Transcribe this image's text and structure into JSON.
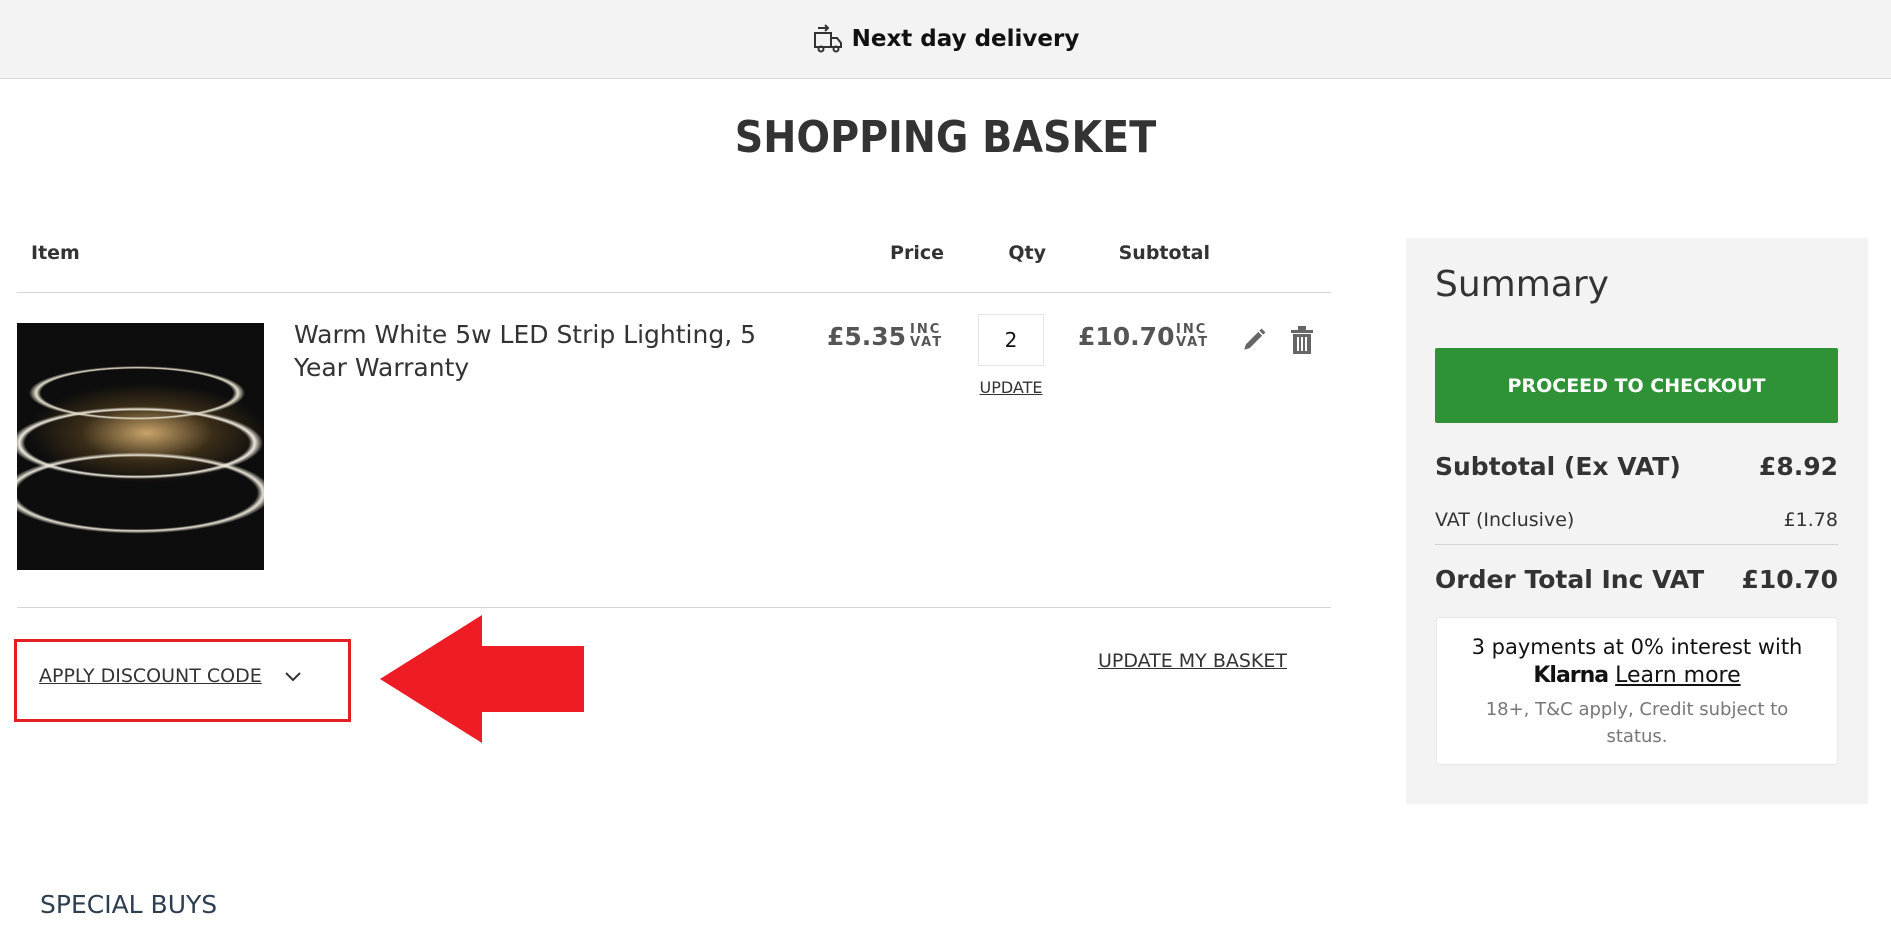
{
  "topbar": {
    "delivery_label": "Next day delivery",
    "icon": "truck-icon"
  },
  "page_title": "SHOPPING BASKET",
  "table": {
    "headers": {
      "item": "Item",
      "price": "Price",
      "qty": "Qty",
      "subtotal": "Subtotal"
    },
    "rows": [
      {
        "name": "Warm White 5w LED Strip Lighting, 5 Year Warranty",
        "price": "£5.35",
        "price_tax": [
          "INC",
          "VAT"
        ],
        "qty": "2",
        "update_label": "UPDATE",
        "subtotal": "£10.70",
        "subtotal_tax": [
          "INC",
          "VAT"
        ]
      }
    ]
  },
  "discount": {
    "label": "APPLY DISCOUNT CODE"
  },
  "update_basket_label": "UPDATE MY BASKET",
  "summary": {
    "title": "Summary",
    "checkout_label": "PROCEED TO CHECKOUT",
    "subtotal_label": "Subtotal (Ex VAT)",
    "subtotal_value": "£8.92",
    "vat_label": "VAT (Inclusive)",
    "vat_value": "£1.78",
    "total_label": "Order Total Inc VAT",
    "total_value": "£10.70",
    "klarna": {
      "line1": "3 payments at 0% interest with",
      "brand": "Klarna",
      "learn_more": "Learn more",
      "terms": "18+, T&C apply, Credit subject to status."
    },
    "colors": {
      "checkout": "#2f9236"
    }
  },
  "special_buys": "SPECIAL BUYS",
  "annotation": {
    "color": "#e31e24"
  }
}
